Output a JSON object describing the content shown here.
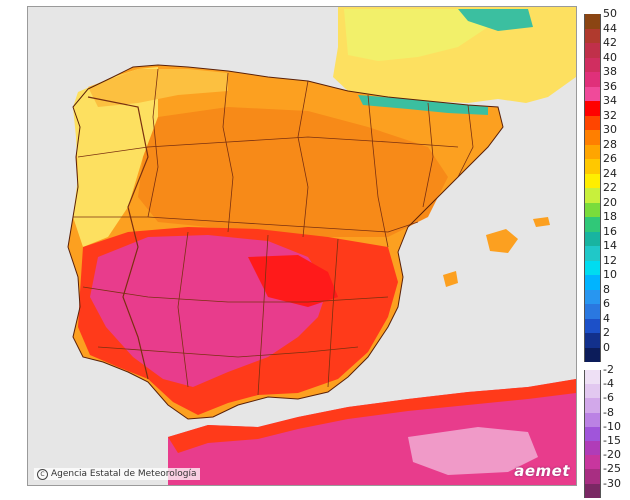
{
  "map": {
    "credit": "Agencia Estatal de Meteorología",
    "credit_icon": "copyright-icon",
    "logo": "aemet",
    "colors": {
      "sea": "#e6e6e6",
      "land_cool": "#fde060",
      "land_warm": "#fca020",
      "land_hot": "#f76a10",
      "land_hotter": "#ff2a1a",
      "land_hottest": "#e83c8c",
      "north_cool": "#f2f06a",
      "green": "#b5e84a",
      "teal": "#3bbfa0",
      "border": "#7a3010"
    }
  },
  "legend": {
    "positive": [
      {
        "label": "50",
        "color": "#8b4513"
      },
      {
        "label": "44",
        "color": "#b03a2e"
      },
      {
        "label": "42",
        "color": "#c0304a"
      },
      {
        "label": "40",
        "color": "#d02e60"
      },
      {
        "label": "38",
        "color": "#e0307a"
      },
      {
        "label": "36",
        "color": "#f04a9a"
      },
      {
        "label": "34",
        "color": "#ff0000"
      },
      {
        "label": "32",
        "color": "#ff4500"
      },
      {
        "label": "30",
        "color": "#ff7f00"
      },
      {
        "label": "28",
        "color": "#ffa500"
      },
      {
        "label": "26",
        "color": "#ffc800"
      },
      {
        "label": "24",
        "color": "#ffee00"
      },
      {
        "label": "22",
        "color": "#c8f03c"
      },
      {
        "label": "20",
        "color": "#7adc3c"
      },
      {
        "label": "18",
        "color": "#30c878"
      },
      {
        "label": "16",
        "color": "#18b4a0"
      },
      {
        "label": "14",
        "color": "#20c8c8"
      },
      {
        "label": "12",
        "color": "#00dcf0"
      },
      {
        "label": "10",
        "color": "#00b4ff"
      },
      {
        "label": "8",
        "color": "#2896f0"
      },
      {
        "label": "6",
        "color": "#2a78e0"
      },
      {
        "label": "4",
        "color": "#1c50c8"
      },
      {
        "label": "2",
        "color": "#12308c"
      },
      {
        "label": "0",
        "color": "#0c1c5a"
      }
    ],
    "negative": [
      {
        "label": "-2",
        "color": "#eee0f5"
      },
      {
        "label": "-4",
        "color": "#e2c8f0"
      },
      {
        "label": "-6",
        "color": "#d2a8ea"
      },
      {
        "label": "-8",
        "color": "#bb82e4"
      },
      {
        "label": "-10",
        "color": "#a055da"
      },
      {
        "label": "-15",
        "color": "#b03cb8"
      },
      {
        "label": "-20",
        "color": "#c8369e"
      },
      {
        "label": "-25",
        "color": "#a82e82"
      },
      {
        "label": "-30",
        "color": "#7a2864"
      }
    ]
  }
}
